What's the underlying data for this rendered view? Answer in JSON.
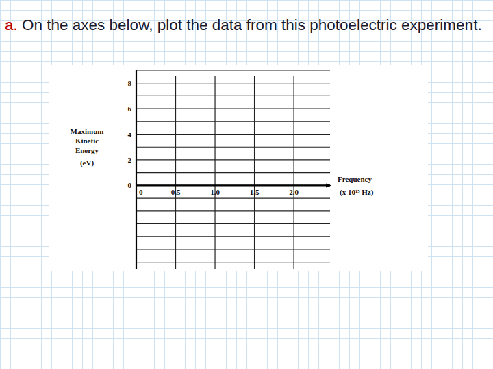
{
  "heading": {
    "label": "a.",
    "text": "On the axes below, plot the data from this photoelectric experiment."
  },
  "chart_data": {
    "type": "scatter",
    "x_label": "Frequency (x 10¹⁵ Hz)",
    "y_label": "Maximum Kinetic Energy (eV)",
    "xlim": [
      0,
      2.46
    ],
    "xticks": [
      0,
      0.5,
      {
        "value": 1,
        "label": "1.0"
      },
      1.5,
      {
        "value": 2,
        "label": "2.0"
      }
    ],
    "ylim": [
      -6.5,
      9
    ],
    "yticks": [
      0,
      2,
      4,
      6,
      8
    ],
    "grid": true
  }
}
